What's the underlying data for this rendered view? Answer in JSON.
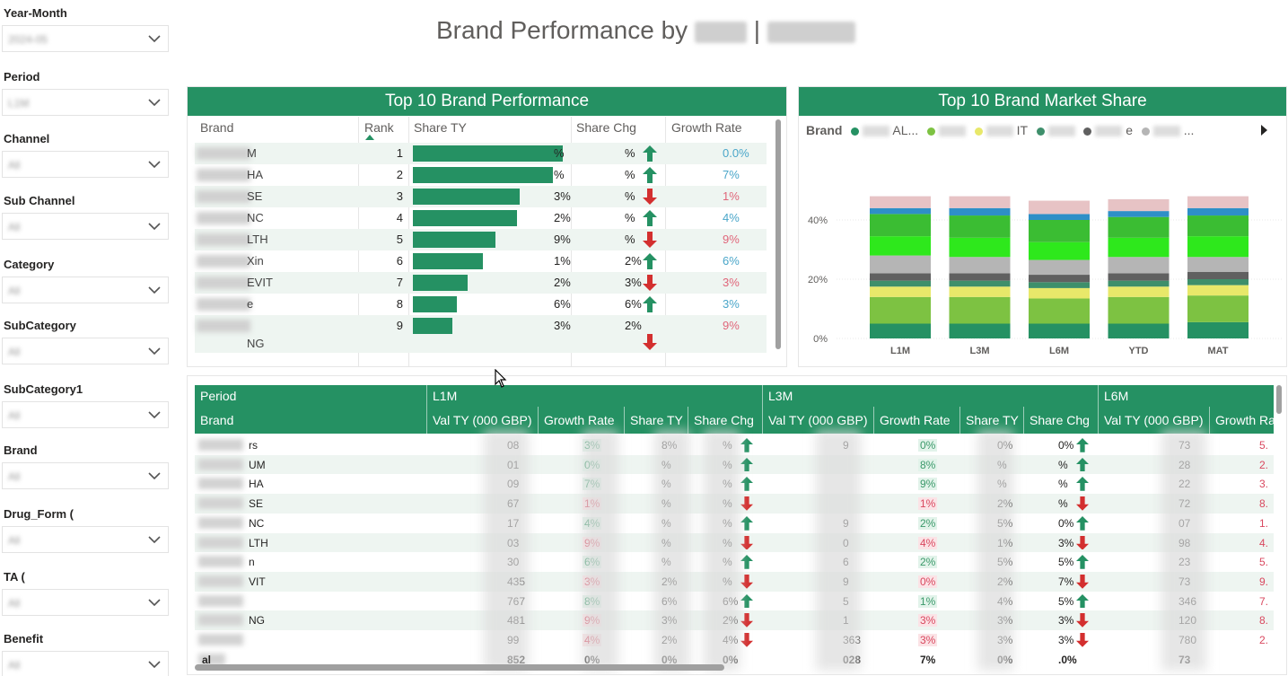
{
  "title": {
    "prefix": "Brand Performance by",
    "separator": "|"
  },
  "slicers": [
    {
      "label": "Year-Month",
      "value": "2024-05"
    },
    {
      "label": "Period",
      "value": "L1M"
    },
    {
      "label": "Channel",
      "value": "All"
    },
    {
      "label": "Sub Channel",
      "value": "All"
    },
    {
      "label": "Category",
      "value": "All"
    },
    {
      "label": "SubCategory",
      "value": "All"
    },
    {
      "label": "SubCategory1",
      "value": "All"
    },
    {
      "label": "Brand",
      "value": "All"
    },
    {
      "label": "Drug_Form (",
      "value": "All"
    },
    {
      "label": "TA (",
      "value": "All"
    },
    {
      "label": "Benefit",
      "value": "All"
    }
  ],
  "top10": {
    "title": "Top 10 Brand Performance",
    "headers": {
      "brand": "Brand",
      "rank": "Rank",
      "share": "Share TY",
      "chg": "Share Chg",
      "growth": "Growth Rate"
    },
    "rows": [
      {
        "brand": "M",
        "rank": "1",
        "share_pct": 0.98,
        "share": "%",
        "chg": "%",
        "dir": "up",
        "growth": "0.0%"
      },
      {
        "brand": "HA",
        "rank": "2",
        "share_pct": 0.92,
        "share": "%",
        "chg": "%",
        "dir": "up",
        "growth": "7%"
      },
      {
        "brand": "SE",
        "rank": "3",
        "share_pct": 0.7,
        "share": "3%",
        "chg": "%",
        "dir": "down",
        "growth": "1%"
      },
      {
        "brand": "NC",
        "rank": "4",
        "share_pct": 0.68,
        "share": "2%",
        "chg": "%",
        "dir": "up",
        "growth": "4%"
      },
      {
        "brand": "LTH",
        "rank": "5",
        "share_pct": 0.54,
        "share": "9%",
        "chg": "%",
        "dir": "down",
        "growth": "9%"
      },
      {
        "brand": "Xin",
        "rank": "6",
        "share_pct": 0.46,
        "share": "1%",
        "chg": "2%",
        "dir": "up",
        "growth": "6%"
      },
      {
        "brand": "EVIT",
        "rank": "7",
        "share_pct": 0.36,
        "share": "2%",
        "chg": "3%",
        "dir": "down",
        "growth": "3%"
      },
      {
        "brand": "e",
        "rank": "8",
        "share_pct": 0.29,
        "share": "6%",
        "chg": "6%",
        "dir": "up",
        "growth": "3%"
      },
      {
        "brand": "NG",
        "rank": "9",
        "share_pct": 0.26,
        "share": "3%",
        "chg": "2%",
        "dir": "down",
        "growth": "9%"
      }
    ]
  },
  "market_share": {
    "title": "Top 10 Brand Market Share",
    "legend_label": "Brand",
    "legend_items": [
      {
        "name": "AL...",
        "color": "#259163"
      },
      {
        "name": "",
        "color": "#7dc242"
      },
      {
        "name": "IT",
        "color": "#e8e86a"
      },
      {
        "name": "",
        "color": "#3e8f6b"
      },
      {
        "name": "e",
        "color": "#606060"
      },
      {
        "name": "...",
        "color": "#b5b5b5"
      }
    ],
    "axis": {
      "yticks": [
        "0%",
        "20%",
        "40%"
      ]
    }
  },
  "chart_data": {
    "type": "bar",
    "stacked": true,
    "categories": [
      "L1M",
      "L3M",
      "L6M",
      "YTD",
      "MAT"
    ],
    "ylim": [
      0,
      50
    ],
    "yticks": [
      "0%",
      "20%",
      "40%"
    ],
    "series": [
      {
        "color": "#259163",
        "values": [
          5,
          5,
          5,
          5,
          5.5
        ]
      },
      {
        "color": "#7dc242",
        "values": [
          9,
          9,
          8.5,
          9,
          9
        ]
      },
      {
        "color": "#e8e86a",
        "values": [
          3.5,
          3.5,
          3.5,
          3.5,
          3.5
        ]
      },
      {
        "color": "#3e8f6b",
        "values": [
          2,
          2,
          2,
          2,
          2
        ]
      },
      {
        "color": "#606060",
        "values": [
          2.5,
          2.5,
          2.5,
          2.5,
          2.5
        ]
      },
      {
        "color": "#b5b5b5",
        "values": [
          6,
          5.5,
          5,
          5.5,
          5
        ]
      },
      {
        "color": "#2ee81c",
        "values": [
          6.5,
          6.5,
          6,
          6.5,
          7
        ]
      },
      {
        "color": "#3bbd33",
        "values": [
          7.5,
          7.5,
          7.5,
          7,
          7
        ]
      },
      {
        "color": "#2e8fc7",
        "values": [
          2,
          2.5,
          2,
          2,
          2.5
        ]
      },
      {
        "color": "#e7c3c5",
        "values": [
          4,
          4,
          4.5,
          4,
          4
        ]
      }
    ]
  },
  "matrix": {
    "period_label": "Period",
    "brand_label": "Brand",
    "periods": [
      "L1M",
      "L3M",
      "L6M"
    ],
    "columns": [
      "Val TY (000 GBP)",
      "Growth Rate",
      "Share TY",
      "Share Chg"
    ],
    "rows": [
      {
        "brand": "rs",
        "l1": [
          "08",
          "3%",
          "8%",
          "%",
          "up"
        ],
        "l3": [
          "9",
          "0%",
          "0%",
          "0%",
          "up"
        ],
        "l6": [
          "73",
          "5."
        ]
      },
      {
        "brand": "UM",
        "l1": [
          "01",
          "0%",
          "%",
          "%",
          "up"
        ],
        "l3": [
          "",
          "8%",
          "%",
          "%",
          "up"
        ],
        "l6": [
          "28",
          "2."
        ]
      },
      {
        "brand": "HA",
        "l1": [
          "09",
          "7%",
          "%",
          "%",
          "up"
        ],
        "l3": [
          "",
          "9%",
          "%",
          "%",
          "up"
        ],
        "l6": [
          "22",
          "3."
        ]
      },
      {
        "brand": "SE",
        "l1": [
          "67",
          "1%",
          "%",
          "%",
          "down"
        ],
        "l3": [
          "",
          "1%",
          "2%",
          "%",
          "down"
        ],
        "l6": [
          "72",
          "8."
        ]
      },
      {
        "brand": "NC",
        "l1": [
          "17",
          "4%",
          "%",
          "%",
          "up"
        ],
        "l3": [
          "9",
          "2%",
          "5%",
          "0%",
          "up"
        ],
        "l6": [
          "07",
          "1."
        ]
      },
      {
        "brand": "LTH",
        "l1": [
          "03",
          "9%",
          "%",
          "%",
          "down"
        ],
        "l3": [
          "0",
          "4%",
          "1%",
          "3%",
          "down"
        ],
        "l6": [
          "98",
          "4."
        ]
      },
      {
        "brand": "n",
        "l1": [
          "30",
          "6%",
          "%",
          "%",
          "up"
        ],
        "l3": [
          "6",
          "2%",
          "5%",
          "5%",
          "up"
        ],
        "l6": [
          "23",
          "5."
        ]
      },
      {
        "brand": "VIT",
        "l1": [
          "435",
          "3%",
          "2%",
          "%",
          "down"
        ],
        "l3": [
          "9",
          "0%",
          "2%",
          "7%",
          "down"
        ],
        "l6": [
          "73",
          "9."
        ]
      },
      {
        "brand": "",
        "l1": [
          "767",
          "8%",
          "6%",
          "6%",
          "up"
        ],
        "l3": [
          "5",
          "1%",
          "4%",
          "5%",
          "up"
        ],
        "l6": [
          "346",
          "7."
        ]
      },
      {
        "brand": "NG",
        "l1": [
          "481",
          "9%",
          "3%",
          "2%",
          "down"
        ],
        "l3": [
          "1",
          "3%",
          "3%",
          "3%",
          "down"
        ],
        "l6": [
          "120",
          "8."
        ]
      },
      {
        "brand": "",
        "l1": [
          "99",
          "4%",
          "2%",
          "4%",
          "down"
        ],
        "l3": [
          "363",
          "3%",
          "3%",
          "3%",
          "down"
        ],
        "l6": [
          "780",
          "2."
        ]
      }
    ],
    "total": {
      "brand": "al",
      "l1": [
        "852",
        "0%",
        "0%",
        "0%"
      ],
      "l3": [
        "028",
        "7%",
        "0%",
        ".0%"
      ],
      "l6": [
        "73",
        ""
      ]
    }
  }
}
